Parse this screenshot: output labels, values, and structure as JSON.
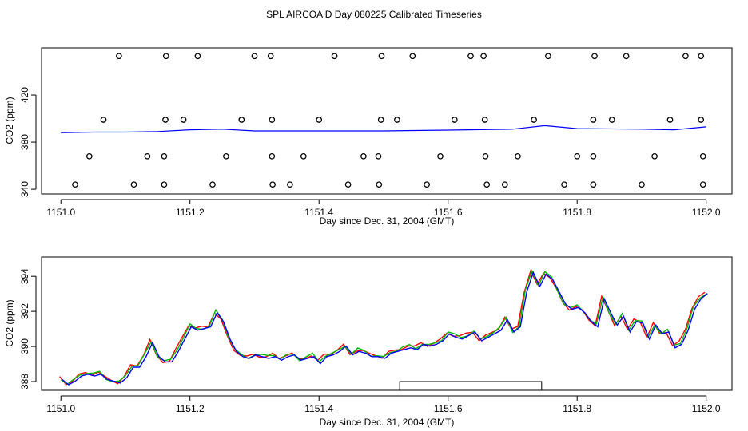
{
  "chart_data": [
    {
      "type": "scatter+line",
      "title": "SPL AIRCOA D  Day 080225  Calibrated Timeseries",
      "xlabel": "Day since Dec. 31, 2004 (GMT)",
      "ylabel": "CO2 (ppm)",
      "xlim": [
        1150.97,
        1152.04
      ],
      "ylim": [
        336,
        460
      ],
      "x_ticks": [
        "1151.0",
        "1151.2",
        "1151.4",
        "1151.6",
        "1151.8",
        "1152.0"
      ],
      "y_ticks": [
        "340",
        "380",
        "420"
      ],
      "y_tick_values": [
        340,
        380,
        420
      ],
      "x_tick_values": [
        1151.0,
        1151.2,
        1151.4,
        1151.6,
        1151.8,
        1152.0
      ],
      "markers": {
        "symbol": "open circle",
        "levels": [
          {
            "y": 453,
            "x": [
              1151.09,
              1151.163,
              1151.212,
              1151.3,
              1151.325,
              1151.424,
              1151.497,
              1151.545,
              1151.635,
              1151.655,
              1151.755,
              1151.827,
              1151.876,
              1151.968,
              1151.992
            ]
          },
          {
            "y": 399,
            "x": [
              1151.066,
              1151.162,
              1151.19,
              1151.28,
              1151.327,
              1151.4,
              1151.496,
              1151.521,
              1151.61,
              1151.657,
              1151.733,
              1151.825,
              1151.854,
              1151.944,
              1151.992
            ]
          },
          {
            "y": 368,
            "x": [
              1151.044,
              1151.134,
              1151.16,
              1151.256,
              1151.327,
              1151.376,
              1151.469,
              1151.492,
              1151.588,
              1151.658,
              1151.708,
              1151.8,
              1151.825,
              1151.92,
              1151.995
            ]
          },
          {
            "y": 344,
            "x": [
              1151.022,
              1151.113,
              1151.16,
              1151.235,
              1151.328,
              1151.355,
              1151.445,
              1151.493,
              1151.567,
              1151.66,
              1151.688,
              1151.78,
              1151.825,
              1151.9,
              1151.995
            ]
          }
        ]
      },
      "series": [
        {
          "name": "blue",
          "color": "#0000ff",
          "x": [
            1151.0,
            1151.05,
            1151.1,
            1151.15,
            1151.2,
            1151.25,
            1151.3,
            1151.4,
            1151.5,
            1151.6,
            1151.7,
            1151.75,
            1151.8,
            1151.9,
            1151.95,
            1152.0
          ],
          "values": [
            388,
            388.5,
            388.5,
            389,
            390.5,
            391,
            389.5,
            389.5,
            389.5,
            390.2,
            391,
            394,
            391.5,
            391,
            390.5,
            393
          ]
        }
      ]
    },
    {
      "type": "line",
      "xlabel": "Day since Dec. 31, 2004 (GMT)",
      "ylabel": "CO2 (ppm)",
      "xlim": [
        1150.97,
        1152.04
      ],
      "ylim": [
        387.5,
        395.1
      ],
      "x_ticks": [
        "1151.0",
        "1151.2",
        "1151.4",
        "1151.6",
        "1151.8",
        "1152.0"
      ],
      "x_tick_values": [
        1151.0,
        1151.2,
        1151.4,
        1151.6,
        1151.8,
        1152.0
      ],
      "y_ticks": [
        "388",
        "390",
        "392",
        "394"
      ],
      "y_tick_values": [
        388,
        390,
        392,
        394
      ],
      "annotation": {
        "shape": "rectangle",
        "x_range": [
          1151.525,
          1151.745
        ],
        "y_range": [
          387.5,
          388.0
        ]
      },
      "base_series": {
        "x": [
          1151.0,
          1151.01,
          1151.02,
          1151.03,
          1151.04,
          1151.05,
          1151.06,
          1151.07,
          1151.08,
          1151.09,
          1151.1,
          1151.11,
          1151.12,
          1151.13,
          1151.14,
          1151.15,
          1151.16,
          1151.17,
          1151.18,
          1151.19,
          1151.2,
          1151.21,
          1151.22,
          1151.23,
          1151.24,
          1151.25,
          1151.26,
          1151.27,
          1151.28,
          1151.29,
          1151.3,
          1151.31,
          1151.32,
          1151.33,
          1151.34,
          1151.35,
          1151.36,
          1151.37,
          1151.38,
          1151.39,
          1151.4,
          1151.41,
          1151.42,
          1151.43,
          1151.44,
          1151.45,
          1151.46,
          1151.47,
          1151.48,
          1151.49,
          1151.5,
          1151.51,
          1151.52,
          1151.53,
          1151.54,
          1151.55,
          1151.56,
          1151.57,
          1151.58,
          1151.59,
          1151.6,
          1151.61,
          1151.62,
          1151.63,
          1151.64,
          1151.65,
          1151.66,
          1151.67,
          1151.68,
          1151.69,
          1151.7,
          1151.71,
          1151.72,
          1151.73,
          1151.74,
          1151.75,
          1151.76,
          1151.77,
          1151.78,
          1151.79,
          1151.8,
          1151.81,
          1151.82,
          1151.83,
          1151.84,
          1151.85,
          1151.86,
          1151.87,
          1151.88,
          1151.89,
          1151.9,
          1151.91,
          1151.92,
          1151.93,
          1151.94,
          1151.95,
          1151.96,
          1151.97,
          1151.98,
          1151.99,
          1152.0
        ],
        "values": [
          388.2,
          387.9,
          388.1,
          388.4,
          388.5,
          388.4,
          388.5,
          388.2,
          388.1,
          388.0,
          388.3,
          388.9,
          388.9,
          389.5,
          390.3,
          389.5,
          389.2,
          389.2,
          389.8,
          390.5,
          391.2,
          391.0,
          391.1,
          391.2,
          392.0,
          391.5,
          390.5,
          389.8,
          389.5,
          389.4,
          389.6,
          389.5,
          389.4,
          389.5,
          389.3,
          389.5,
          389.6,
          389.3,
          389.4,
          389.5,
          389.1,
          389.5,
          389.6,
          389.8,
          390.1,
          389.6,
          389.8,
          389.7,
          389.5,
          389.5,
          389.4,
          389.7,
          389.8,
          389.9,
          390.0,
          389.9,
          390.2,
          390.1,
          390.2,
          390.4,
          390.8,
          390.6,
          390.5,
          390.7,
          390.9,
          390.4,
          390.6,
          390.8,
          391.0,
          391.6,
          390.9,
          391.2,
          393.2,
          394.3,
          393.5,
          394.2,
          393.9,
          393.2,
          392.5,
          392.2,
          392.3,
          392.0,
          391.5,
          391.2,
          392.8,
          392.0,
          391.3,
          391.8,
          390.9,
          391.5,
          391.4,
          390.5,
          391.3,
          390.8,
          390.9,
          390.0,
          390.2,
          391.0,
          392.2,
          392.8,
          393.1
        ]
      },
      "series": [
        {
          "name": "red",
          "color": "#ff0000"
        },
        {
          "name": "green",
          "color": "#00bb00"
        },
        {
          "name": "blue",
          "color": "#0000ff"
        }
      ]
    }
  ]
}
